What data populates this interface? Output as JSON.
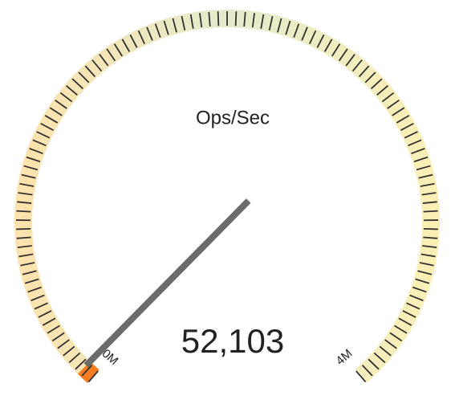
{
  "chart_data": {
    "type": "gauge",
    "title": "Ops/Sec",
    "values": [
      52103
    ],
    "value_labels": [
      "52,103"
    ],
    "color": "#f57c20",
    "needle_color": "#6b6b6b",
    "ylim": [
      0,
      4000000
    ],
    "yticks": [
      {
        "value": 0,
        "label": "0M"
      },
      {
        "value": 4000000,
        "label": "4M"
      }
    ]
  }
}
